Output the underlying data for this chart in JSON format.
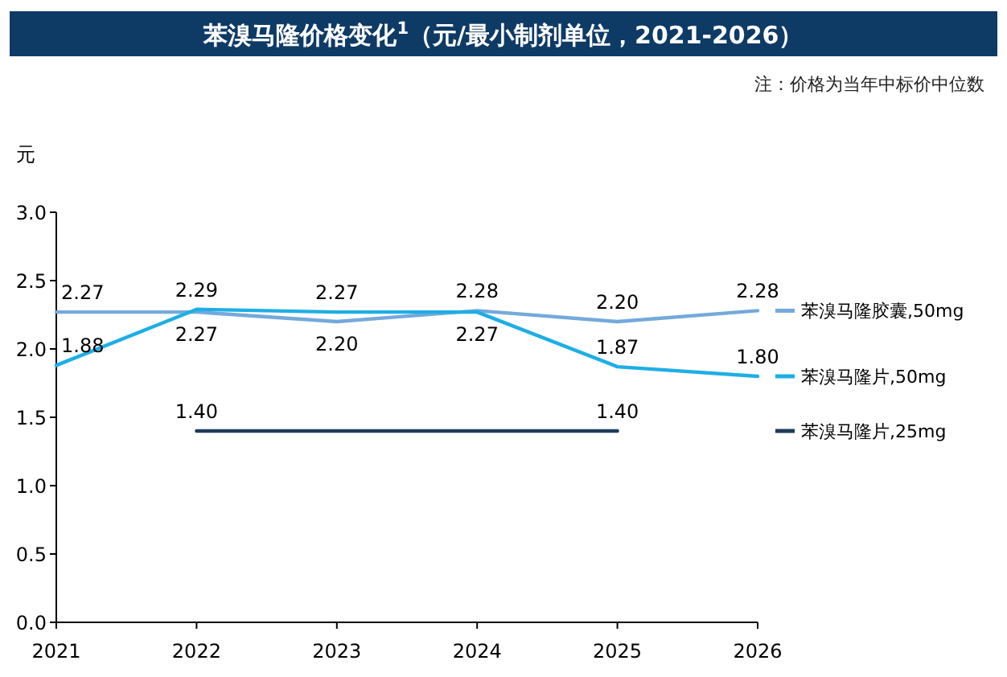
{
  "chart_data": {
    "type": "line",
    "title": "苯溴马隆价格变化$^{1}$（元/最小制剂单位，2021-2026）",
    "subtitle": "注：价格为当年中标价中位数",
    "ylabel": "元",
    "x": [
      2021,
      2022,
      2023,
      2024,
      2025,
      2026
    ],
    "xlim": [
      2021,
      2026
    ],
    "xticks": [
      2021,
      2022,
      2023,
      2024,
      2025,
      2026
    ],
    "ylim": [
      0,
      3
    ],
    "yticks": [
      {
        "value": 0,
        "label": "0.0"
      },
      {
        "value": 0.5,
        "label": "0.5"
      },
      {
        "value": 1,
        "label": "1.0"
      },
      {
        "value": 1.5,
        "label": "1.5"
      },
      {
        "value": 2,
        "label": "2.0"
      },
      {
        "value": 2.5,
        "label": "2.5"
      },
      {
        "value": 3,
        "label": "3.0"
      }
    ],
    "series": [
      {
        "name": "苯溴马隆胶囊,50mg",
        "color": "#74a9dc",
        "values": [
          2.27,
          2.27,
          2.2,
          2.28,
          2.2,
          2.28
        ],
        "value_labels": [
          "2.27",
          "2.27",
          "2.20",
          "2.28",
          "2.20",
          "2.28"
        ]
      },
      {
        "name": "苯溴马隆片,50mg",
        "color": "#1eaee6",
        "values": [
          1.88,
          2.29,
          2.27,
          2.27,
          1.87,
          1.8
        ],
        "value_labels": [
          "1.88",
          "2.29",
          "2.27",
          "2.27",
          "1.87",
          "1.80"
        ]
      },
      {
        "name": "苯溴马隆片,25mg",
        "color": "#1f3b5a",
        "x": [
          2022,
          2025
        ],
        "values": [
          1.4,
          1.4
        ],
        "value_labels": [
          "1.40",
          "1.40"
        ]
      }
    ],
    "legend": "right",
    "grid": false,
    "marker": "none",
    "line_style": "solid"
  }
}
